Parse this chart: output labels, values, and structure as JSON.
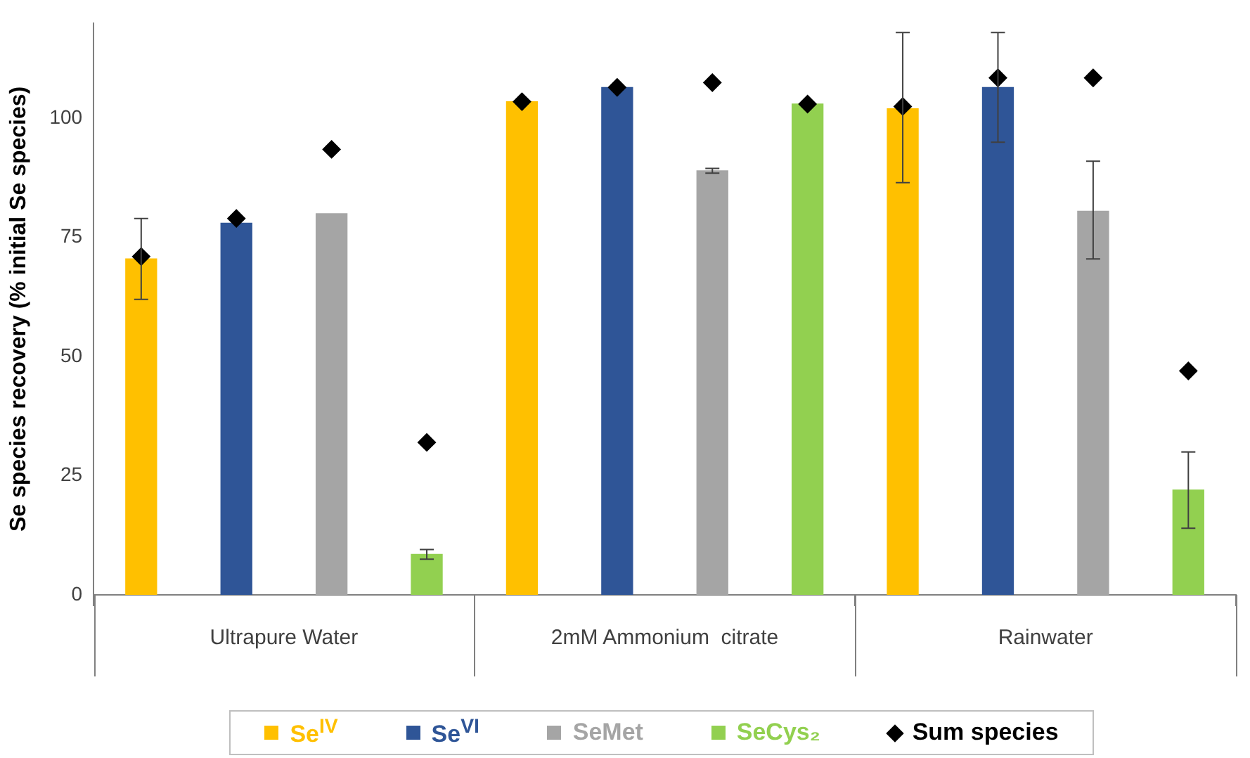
{
  "chart_data": {
    "type": "bar",
    "ylabel": "Se species recovery (% initial Se species)",
    "categories": [
      "Ultrapure Water",
      "2mM Ammonium  citrate",
      "Rainwater"
    ],
    "series": [
      {
        "name": "Se$^{IV}$",
        "color": "#ffc000",
        "values": [
          70.5,
          103.5,
          102
        ],
        "errors": [
          [
            62,
            79
          ],
          null,
          [
            86.5,
            118
          ]
        ]
      },
      {
        "name": "Se$^{VI}$",
        "color": "#2f5597",
        "values": [
          78,
          106.5,
          106.5
        ],
        "errors": [
          null,
          null,
          [
            95,
            118
          ]
        ]
      },
      {
        "name": "SeMet",
        "color": "#a5a5a5",
        "values": [
          80,
          89,
          80.5
        ],
        "errors": [
          null,
          [
            88.5,
            89.5
          ],
          [
            70.5,
            91
          ]
        ]
      },
      {
        "name": "SeCys₂",
        "color": "#92d050",
        "values": [
          8.5,
          103,
          22
        ],
        "errors": [
          [
            7.5,
            9.5
          ],
          null,
          [
            14,
            30
          ]
        ]
      },
      {
        "name": "Sum species",
        "type": "scatter",
        "color": "#000000",
        "marker": "diamond",
        "x": [
          "Ultrapure Water",
          "Ultrapure Water",
          "Ultrapure Water",
          "Ultrapure Water",
          "2mM Ammonium  citrate",
          "2mM Ammonium  citrate",
          "2mM Ammonium  citrate",
          "2mM Ammonium  citrate",
          "Rainwater",
          "Rainwater",
          "Rainwater",
          "Rainwater"
        ],
        "values": [
          71,
          79,
          93.5,
          32,
          103.5,
          106.5,
          107.5,
          103,
          102.5,
          108.5,
          108.5,
          47
        ]
      }
    ],
    "ylim": [
      0,
      120
    ],
    "yticks": [
      0,
      25,
      50,
      75,
      100
    ],
    "grid": false,
    "legend": "bottom"
  }
}
